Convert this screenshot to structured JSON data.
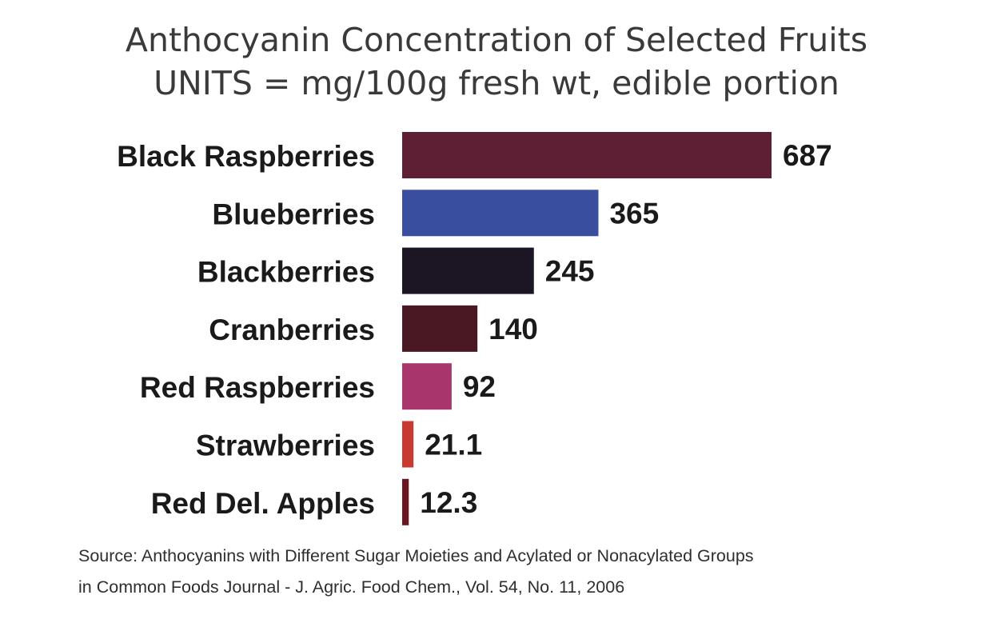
{
  "chart_data": {
    "type": "bar",
    "orientation": "horizontal",
    "title": "Anthocyanin Concentration of Selected Fruits",
    "subtitle": "UNITS = mg/100g fresh wt, edible portion",
    "categories": [
      "Black Raspberries",
      "Blueberries",
      "Blackberries",
      "Cranberries",
      "Red Raspberries",
      "Strawberries",
      "Red Del. Apples"
    ],
    "values": [
      687,
      365,
      245,
      140,
      92,
      21.1,
      12.3
    ],
    "value_labels": [
      "687",
      "365",
      "245",
      "140",
      "92",
      "21.1",
      "12.3"
    ],
    "colors": [
      "#5e1e34",
      "#3a4ea0",
      "#1c1624",
      "#4a1822",
      "#a8356c",
      "#c73a30",
      "#6a1620"
    ],
    "xlim": [
      0,
      687
    ],
    "grid": false,
    "legend": "none",
    "xlabel": "",
    "ylabel": ""
  },
  "source": {
    "line1": "Source: Anthocyanins with Different Sugar Moieties and Acylated or Nonacylated Groups",
    "line2": "in Common Foods Journal - J. Agric. Food Chem., Vol. 54, No. 11, 2006"
  }
}
